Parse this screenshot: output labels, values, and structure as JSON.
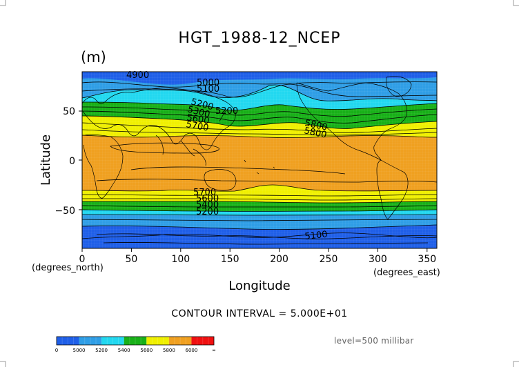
{
  "title": "HGT_1988-12_NCEP",
  "units": "(m)",
  "x_axis": {
    "label": "Longitude",
    "min_label": "(degrees_north)",
    "max_label": "(degrees_east)",
    "ticks": [
      "0",
      "50",
      "100",
      "150",
      "200",
      "250",
      "300",
      "350"
    ]
  },
  "y_axis": {
    "label": "Latitude",
    "ticks": [
      "50",
      "0",
      "−50"
    ]
  },
  "contour_interval": "CONTOUR INTERVAL = 5.000E+01",
  "level": "level=500 millibar",
  "contour_labels": [
    "4900",
    "5000",
    "5100",
    "5200",
    "5300",
    "5200",
    "5600",
    "5700",
    "5800",
    "5800",
    "5700",
    "5600",
    "5400",
    "5200",
    "5100"
  ],
  "legend": {
    "labels": [
      "0",
      "5000",
      "5200",
      "5400",
      "5600",
      "5800",
      "6000",
      "∞"
    ],
    "colors": [
      "#1f5fe8",
      "#2f9ee6",
      "#22d8f0",
      "#18b018",
      "#f0f000",
      "#f0a020",
      "#f01010"
    ]
  },
  "colors": {
    "band_4900": "#1f5fe8",
    "band_5100": "#2f9ee6",
    "band_5300": "#22d8f0",
    "band_5500": "#18b018",
    "band_5700": "#f0f000",
    "band_5900": "#f0a020"
  }
}
